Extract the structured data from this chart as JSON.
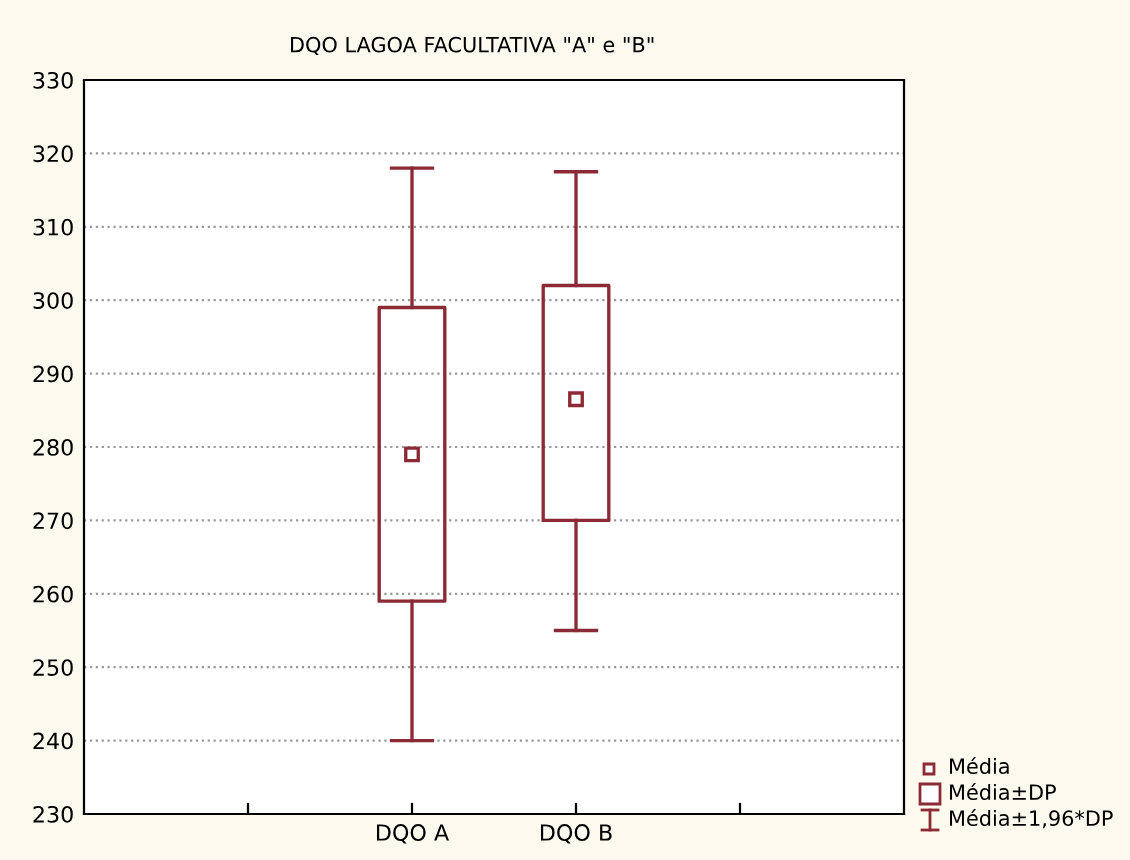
{
  "chart_data": {
    "type": "box",
    "title": "DQO LAGOA FACULTATIVA \"A\" e \"B\"",
    "categories": [
      "DQO A",
      "DQO B"
    ],
    "boxes": [
      {
        "low": 240,
        "q1": 259,
        "q3": 299,
        "high": 318,
        "mean": 279
      },
      {
        "low": 255,
        "q1": 270,
        "q3": 302,
        "high": 317.5,
        "mean": 286.5
      }
    ],
    "color": "#8b2a35",
    "ylim": [
      230,
      330
    ],
    "yticks": [
      230,
      240,
      250,
      260,
      270,
      280,
      290,
      300,
      310,
      320,
      330
    ],
    "grid": "y",
    "annotations": [
      "Média",
      "Média±DP",
      "Média±1,96*DP"
    ]
  }
}
